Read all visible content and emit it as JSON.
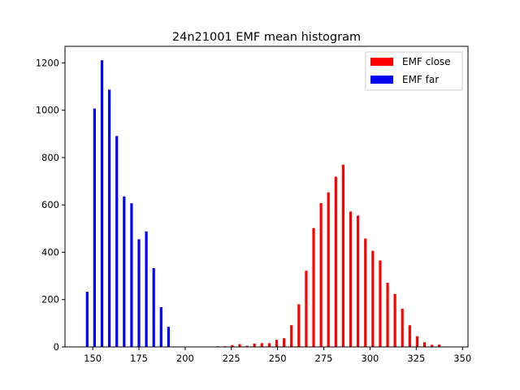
{
  "chart_data": {
    "type": "bar",
    "title": "24n21001 EMF mean histogram",
    "xlabel": "",
    "ylabel": "",
    "xlim": [
      135,
      353
    ],
    "ylim": [
      0,
      1270
    ],
    "x_ticks": [
      150,
      175,
      200,
      225,
      250,
      275,
      300,
      325,
      350
    ],
    "y_ticks": [
      0,
      200,
      400,
      600,
      800,
      1000,
      1200
    ],
    "grid": false,
    "legend_position": "upper right",
    "series": [
      {
        "name": "EMF close",
        "color": "#ff0000",
        "bin_centers": [
          217.5,
          221.5,
          225.5,
          229.5,
          233.5,
          237.5,
          241.5,
          245.5,
          249.5,
          253.5,
          257.5,
          261.5,
          265.5,
          269.5,
          273.5,
          277.5,
          281.5,
          285.5,
          289.5,
          293.5,
          297.5,
          301.5,
          305.5,
          309.5,
          313.5,
          317.5,
          321.5,
          325.5,
          329.5,
          333.5,
          337.5
        ],
        "values": [
          3,
          3,
          8,
          12,
          5,
          14,
          16,
          16,
          30,
          37,
          92,
          180,
          322,
          502,
          608,
          653,
          719,
          770,
          572,
          555,
          458,
          406,
          365,
          271,
          224,
          161,
          92,
          45,
          20,
          9,
          10
        ]
      },
      {
        "name": "EMF far",
        "color": "#0000ff",
        "bin_centers": [
          147.0,
          151.0,
          155.0,
          159.0,
          163.0,
          167.0,
          171.0,
          175.0,
          179.0,
          183.0,
          187.0,
          191.0
        ],
        "values": [
          233,
          1007,
          1211,
          1087,
          891,
          636,
          607,
          455,
          488,
          333,
          168,
          85
        ]
      }
    ]
  }
}
